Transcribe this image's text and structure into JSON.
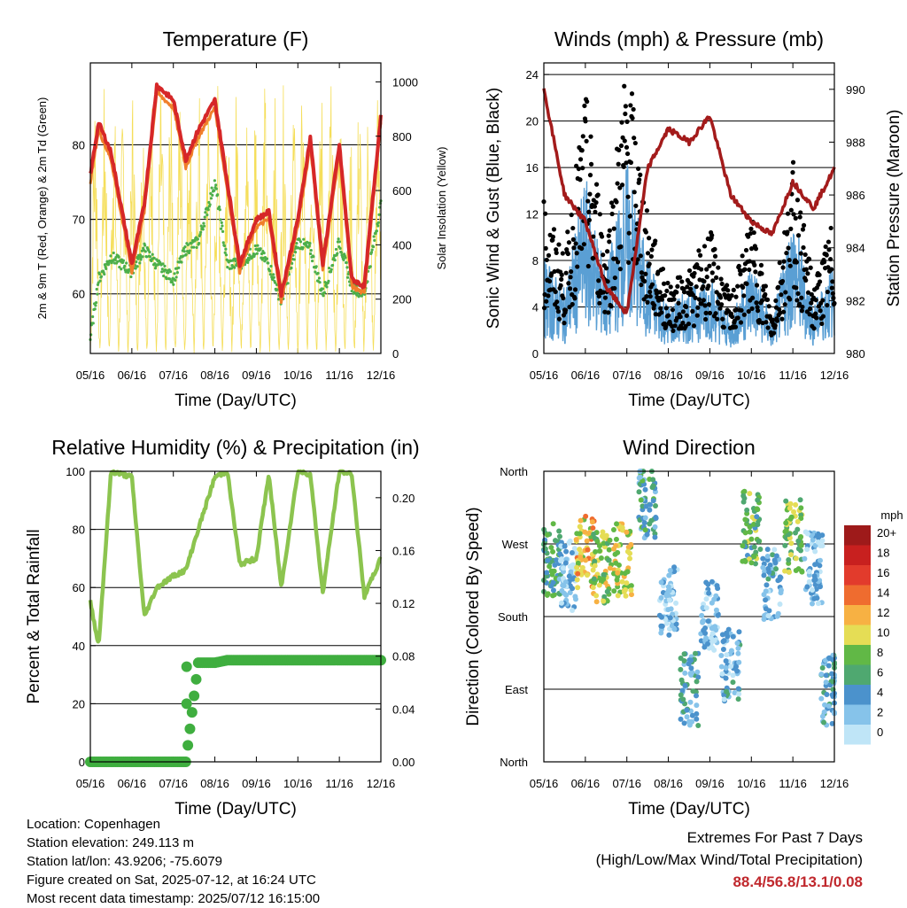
{
  "x_ticks": [
    "05/16",
    "06/16",
    "07/16",
    "08/16",
    "09/16",
    "10/16",
    "11/16",
    "12/16"
  ],
  "x_label": "Time (Day/UTC)",
  "colors": {
    "temp_2m": "#d62728",
    "temp_9m": "#f07f2b",
    "dewpoint": "#4daf4a",
    "solar": "#f5de5a",
    "gust": "#000000",
    "wind": "#5a9fd4",
    "pressure": "#a31b1b",
    "rh": "#8cc44f",
    "precip": "#3fae3f"
  },
  "chart_data": [
    {
      "type": "line",
      "panel": "temperature",
      "title": "Temperature (F)",
      "xlabel": "Time (Day/UTC)",
      "ylabel": "2m & 9m T (Red, Orange) & 2m Td (Green)",
      "ylabel_right": "Solar Insolation (Yellow)",
      "ylim": [
        52,
        91
      ],
      "y_ticks": [
        60,
        70,
        80
      ],
      "ylim_right": [
        0,
        1070
      ],
      "y_ticks_right": [
        0,
        200,
        400,
        600,
        800,
        1000
      ],
      "x": [
        0,
        0.2,
        0.5,
        1,
        1.3,
        1.6,
        2,
        2.3,
        2.6,
        3,
        3.3,
        3.6,
        4,
        4.3,
        4.6,
        5,
        5.3,
        5.6,
        6,
        6.3,
        6.6,
        7
      ],
      "series": [
        {
          "key": "temp_2m",
          "values": [
            76,
            83,
            79,
            64,
            72,
            88,
            86,
            78,
            82,
            86,
            75,
            64,
            70,
            71,
            60,
            70,
            81,
            64,
            80,
            62,
            61,
            84
          ]
        },
        {
          "key": "temp_9m",
          "values": [
            75,
            82,
            78,
            63,
            71,
            87,
            85,
            77,
            81,
            85,
            74,
            63,
            69,
            70,
            59,
            69,
            80,
            63,
            79,
            61,
            60,
            83
          ]
        },
        {
          "key": "dewpoint",
          "values": [
            54,
            62,
            65,
            63,
            66,
            64,
            62,
            66,
            67,
            75,
            64,
            64,
            66,
            64,
            59,
            67,
            66,
            60,
            67,
            61,
            60,
            72
          ]
        },
        {
          "key": "solar",
          "values": [
            0,
            700,
            0,
            900,
            0,
            950,
            0,
            880,
            0,
            1000,
            0,
            800,
            0,
            850,
            0,
            1050,
            0,
            900,
            0,
            980,
            0,
            950
          ]
        }
      ]
    },
    {
      "type": "scatter",
      "panel": "winds",
      "title": "Winds (mph) & Pressure (mb)",
      "xlabel": "Time (Day/UTC)",
      "ylabel": "Sonic Wind & Gust (Blue, Black)",
      "ylabel_right": "Station Pressure (Maroon)",
      "ylim": [
        0,
        25
      ],
      "y_ticks": [
        0,
        4,
        8,
        12,
        16,
        20,
        24
      ],
      "ylim_right": [
        980,
        991
      ],
      "y_ticks_right": [
        980,
        982,
        984,
        986,
        988,
        990
      ],
      "x": [
        0,
        0.5,
        1,
        1.5,
        2,
        2.5,
        3,
        3.5,
        4,
        4.5,
        5,
        5.5,
        6,
        6.5,
        7
      ],
      "series": [
        {
          "key": "gust",
          "values": [
            11,
            7,
            19,
            8,
            22,
            10,
            5,
            6,
            9,
            4,
            10,
            3,
            14,
            5,
            10
          ]
        },
        {
          "key": "wind",
          "values": [
            6,
            4,
            11,
            5,
            12,
            6,
            3,
            4,
            5,
            2,
            6,
            2,
            9,
            3,
            6
          ]
        },
        {
          "key": "pressure",
          "values": [
            990,
            986,
            985,
            982.5,
            981.5,
            987,
            988.5,
            988,
            989,
            986,
            985,
            984.5,
            986.5,
            985.5,
            987
          ]
        }
      ]
    },
    {
      "type": "line",
      "panel": "humidity",
      "title": "Relative Humidity (%) & Precipitation (in)",
      "xlabel": "Time (Day/UTC)",
      "ylabel": "Percent & Total Rainfall",
      "ylim": [
        0,
        100
      ],
      "y_ticks": [
        0,
        20,
        40,
        60,
        80,
        100
      ],
      "ylim_right": [
        0,
        0.22
      ],
      "y_ticks_right": [
        "0.00",
        "0.04",
        "0.08",
        "0.12",
        "0.16",
        "0.20"
      ],
      "x": [
        0,
        0.2,
        0.5,
        1,
        1.3,
        1.6,
        2,
        2.3,
        2.6,
        3,
        3.3,
        3.6,
        4,
        4.3,
        4.6,
        5,
        5.3,
        5.6,
        6,
        6.3,
        6.6,
        7
      ],
      "series": [
        {
          "key": "rh",
          "values": [
            55,
            40,
            100,
            98,
            50,
            60,
            64,
            66,
            80,
            98,
            100,
            68,
            70,
            99,
            60,
            100,
            99,
            58,
            100,
            99,
            57,
            70
          ]
        },
        {
          "key": "precip",
          "values": [
            0,
            0,
            0,
            0,
            0,
            0,
            0,
            0,
            0.075,
            0.075,
            0.077,
            0.077,
            0.077,
            0.077,
            0.077,
            0.077,
            0.077,
            0.077,
            0.077,
            0.077,
            0.077,
            0.077
          ]
        }
      ]
    },
    {
      "type": "scatter",
      "panel": "wind_direction",
      "title": "Wind Direction",
      "xlabel": "Time (Day/UTC)",
      "ylabel": "Direction (Colored By Speed)",
      "y_ticks": [
        "North",
        "East",
        "South",
        "West",
        "North"
      ],
      "ylim": [
        0,
        360
      ],
      "legend_title": "mph",
      "legend_labels": [
        "0",
        "2",
        "4",
        "6",
        "8",
        "10",
        "12",
        "14",
        "16",
        "18",
        "20+"
      ],
      "legend_colors": [
        "#bfe5f7",
        "#86c3ea",
        "#4b92cc",
        "#4fa870",
        "#61b846",
        "#e5dd55",
        "#f7b143",
        "#ef6c2f",
        "#e23b2c",
        "#c8201f",
        "#9e1a1a"
      ],
      "clusters": [
        {
          "x": 0.2,
          "dir": 250,
          "speed": 6
        },
        {
          "x": 0.6,
          "dir": 230,
          "speed": 2
        },
        {
          "x": 1.0,
          "dir": 260,
          "speed": 11
        },
        {
          "x": 1.4,
          "dir": 240,
          "speed": 9
        },
        {
          "x": 1.9,
          "dir": 250,
          "speed": 10
        },
        {
          "x": 2.5,
          "dir": 320,
          "speed": 5
        },
        {
          "x": 3.0,
          "dir": 200,
          "speed": 2
        },
        {
          "x": 3.5,
          "dir": 90,
          "speed": 4
        },
        {
          "x": 4.0,
          "dir": 180,
          "speed": 2
        },
        {
          "x": 4.5,
          "dir": 120,
          "speed": 3
        },
        {
          "x": 5.0,
          "dir": 290,
          "speed": 7
        },
        {
          "x": 5.5,
          "dir": 220,
          "speed": 3
        },
        {
          "x": 6.0,
          "dir": 280,
          "speed": 8
        },
        {
          "x": 6.5,
          "dir": 240,
          "speed": 2
        },
        {
          "x": 6.9,
          "dir": 90,
          "speed": 4
        }
      ]
    }
  ],
  "info": {
    "location": "Location: Copenhagen",
    "elevation": "Station elevation: 249.113 m",
    "latlon": "Station lat/lon: 43.9206; -75.6079",
    "created": "Figure created on Sat, 2025-07-12, at 16:24 UTC",
    "recent": "Most recent data timestamp: 2025/07/12 16:15:00"
  },
  "extremes": {
    "line1": "Extremes For Past 7 Days",
    "line2": "(High/Low/Max Wind/Total Precipitation)",
    "values": "88.4/56.8/13.1/0.08"
  }
}
